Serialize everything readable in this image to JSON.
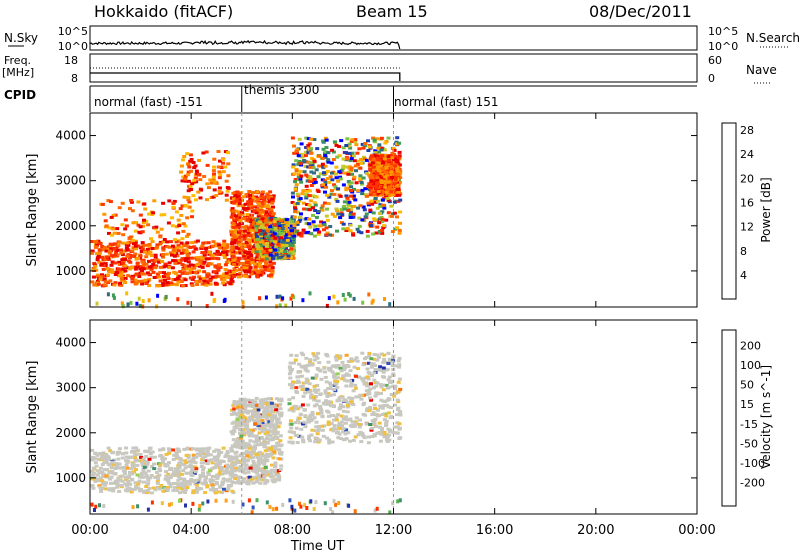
{
  "header": {
    "station": "Hokkaido (fitACF)",
    "beam": "Beam 15",
    "date": "08/Dec/2011"
  },
  "panels": {
    "nsky": {
      "label": "N.Sky",
      "ticks": [
        "10^5",
        "10^0"
      ],
      "right_label": "N.Search"
    },
    "freq": {
      "label_line1": "Freq.",
      "label_line2": "[MHz]",
      "ticks_left": [
        "18",
        "8"
      ],
      "ticks_right": [
        "60",
        "0"
      ],
      "right_label": "Nave"
    },
    "cpid": {
      "label": "CPID",
      "segments": [
        "normal (fast) -151",
        "themis 3300",
        "normal (fast) 151"
      ]
    }
  },
  "chart_data": [
    {
      "type": "heatmap",
      "title": "",
      "xlabel": "Time UT",
      "ylabel": "Slant Range [km]",
      "x_ticks": [
        "00:00",
        "04:00",
        "08:00",
        "12:00",
        "16:00",
        "20:00",
        "00:00"
      ],
      "xlim_hours": [
        0,
        24
      ],
      "y_ticks": [
        1000,
        2000,
        3000,
        4000
      ],
      "ylim_km": [
        200,
        4500
      ],
      "data_end_hour": 12.25,
      "colorbar": {
        "label": "Power [dB]",
        "ticks": [
          "4",
          "8",
          "12",
          "16",
          "20",
          "24",
          "28"
        ],
        "colors": [
          "#0000ff",
          "#1f3fb0",
          "#2e6e80",
          "#3f9a55",
          "#7fc241",
          "#c8c82c",
          "#ffbb00",
          "#ff9a00",
          "#ff6a00",
          "#ff3300",
          "#e80000"
        ]
      },
      "regions": [
        {
          "t": [
            0.0,
            5.6
          ],
          "r": [
            700,
            1700
          ],
          "level": "high"
        },
        {
          "t": [
            0.3,
            4.0
          ],
          "r": [
            1700,
            2600
          ],
          "level": "scatter"
        },
        {
          "t": [
            3.5,
            5.5
          ],
          "r": [
            2600,
            3700
          ],
          "level": "scatter"
        },
        {
          "t": [
            5.5,
            7.2
          ],
          "r": [
            900,
            2800
          ],
          "level": "high"
        },
        {
          "t": [
            6.5,
            8.0
          ],
          "r": [
            1300,
            2200
          ],
          "level": "mixed"
        },
        {
          "t": [
            7.9,
            12.2
          ],
          "r": [
            1800,
            4000
          ],
          "level": "mixed"
        },
        {
          "t": [
            11.0,
            12.2
          ],
          "r": [
            2700,
            3600
          ],
          "level": "high"
        }
      ]
    },
    {
      "type": "heatmap",
      "title": "",
      "xlabel": "Time UT",
      "ylabel": "Slant Range [km]",
      "x_ticks": [
        "00:00",
        "04:00",
        "08:00",
        "12:00",
        "16:00",
        "20:00",
        "00:00"
      ],
      "xlim_hours": [
        0,
        24
      ],
      "y_ticks": [
        1000,
        2000,
        3000,
        4000
      ],
      "ylim_km": [
        200,
        4500
      ],
      "data_end_hour": 12.25,
      "colorbar": {
        "label": "Velocity [m s^-1]",
        "ticks": [
          "200",
          "100",
          "50",
          "15",
          "-15",
          "-50",
          "-100",
          "-200"
        ],
        "colors": [
          "#2233aa",
          "#3355bb",
          "#3f8f6a",
          "#55b055",
          "#9ad04f",
          "#c8c8c0",
          "#c8c8c0",
          "#f0c040",
          "#ffa020",
          "#ff7000",
          "#ff3000",
          "#e80000"
        ]
      },
      "regions": [
        {
          "t": [
            0.0,
            5.6
          ],
          "r": [
            700,
            1700
          ],
          "level": "ground"
        },
        {
          "t": [
            5.5,
            7.5
          ],
          "r": [
            900,
            2800
          ],
          "level": "ground"
        },
        {
          "t": [
            7.8,
            12.2
          ],
          "r": [
            1800,
            3800
          ],
          "level": "ground"
        }
      ]
    }
  ]
}
